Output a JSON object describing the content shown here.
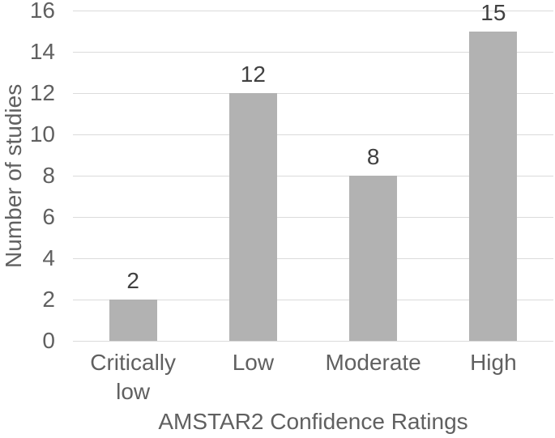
{
  "chart_data": {
    "type": "bar",
    "title": "",
    "xlabel": "AMSTAR2 Confidence Ratings",
    "ylabel": "Number of studies",
    "categories": [
      "Critically low",
      "Low",
      "Moderate",
      "High"
    ],
    "values": [
      2,
      12,
      8,
      15
    ],
    "data_labels": [
      "2",
      "12",
      "8",
      "15"
    ],
    "ylim": [
      0,
      16
    ],
    "yticks": [
      0,
      2,
      4,
      6,
      8,
      10,
      12,
      14,
      16
    ],
    "grid": true,
    "legend": false,
    "colors": {
      "bar": "#b2b2b2",
      "gridline": "#dbdbdb",
      "axis_text": "#606060",
      "value_label": "#404040",
      "background": "#ffffff"
    }
  }
}
